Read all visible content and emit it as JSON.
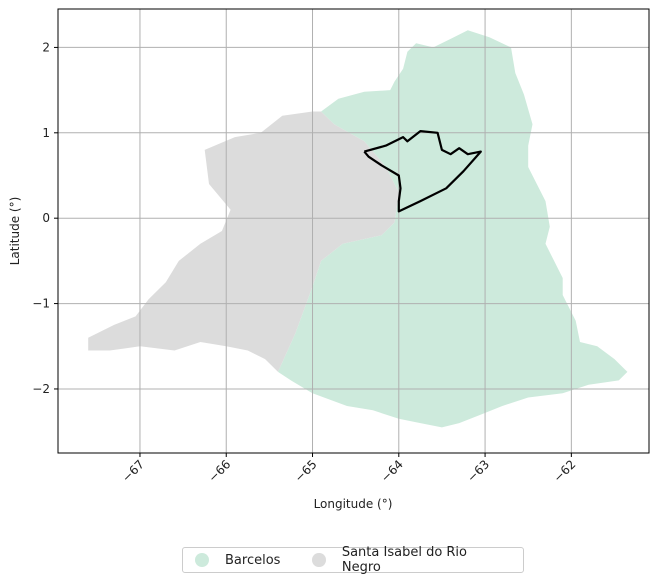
{
  "chart_data": {
    "type": "map",
    "xlabel": "Longitude (°)",
    "ylabel": "Latitude (°)",
    "xlim": [
      -67.95,
      -61.1
    ],
    "ylim": [
      -2.75,
      2.45
    ],
    "xticks": [
      -67,
      -66,
      -65,
      -64,
      -63,
      -62
    ],
    "yticks": [
      -2,
      -1,
      0,
      1,
      2
    ],
    "xtick_labels": [
      "−67",
      "−66",
      "−65",
      "−64",
      "−63",
      "−62"
    ],
    "ytick_labels": [
      "−2",
      "−1",
      "0",
      "1",
      "2"
    ],
    "xtick_rotation": 45,
    "grid": true,
    "legend_position": "bottom-center",
    "regions": [
      {
        "name": "Barcelos",
        "color": "#cdeadc",
        "polygon": [
          [
            -64.9,
            1.25
          ],
          [
            -64.7,
            1.4
          ],
          [
            -64.4,
            1.48
          ],
          [
            -64.1,
            1.5
          ],
          [
            -64.05,
            1.6
          ],
          [
            -63.95,
            1.75
          ],
          [
            -63.9,
            1.95
          ],
          [
            -63.8,
            2.05
          ],
          [
            -63.6,
            2.0
          ],
          [
            -63.4,
            2.1
          ],
          [
            -63.2,
            2.2
          ],
          [
            -62.95,
            2.12
          ],
          [
            -62.7,
            2.0
          ],
          [
            -62.65,
            1.7
          ],
          [
            -62.55,
            1.45
          ],
          [
            -62.45,
            1.1
          ],
          [
            -62.5,
            0.85
          ],
          [
            -62.5,
            0.6
          ],
          [
            -62.4,
            0.4
          ],
          [
            -62.3,
            0.2
          ],
          [
            -62.25,
            -0.1
          ],
          [
            -62.3,
            -0.3
          ],
          [
            -62.2,
            -0.5
          ],
          [
            -62.1,
            -0.7
          ],
          [
            -62.1,
            -0.9
          ],
          [
            -61.95,
            -1.2
          ],
          [
            -61.9,
            -1.45
          ],
          [
            -61.7,
            -1.5
          ],
          [
            -61.5,
            -1.65
          ],
          [
            -61.35,
            -1.8
          ],
          [
            -61.45,
            -1.9
          ],
          [
            -61.8,
            -1.95
          ],
          [
            -62.1,
            -2.05
          ],
          [
            -62.5,
            -2.1
          ],
          [
            -62.8,
            -2.2
          ],
          [
            -63.05,
            -2.3
          ],
          [
            -63.3,
            -2.4
          ],
          [
            -63.5,
            -2.45
          ],
          [
            -63.75,
            -2.4
          ],
          [
            -64.0,
            -2.35
          ],
          [
            -64.3,
            -2.25
          ],
          [
            -64.6,
            -2.2
          ],
          [
            -65.0,
            -2.05
          ],
          [
            -65.25,
            -1.9
          ],
          [
            -65.4,
            -1.8
          ],
          [
            -65.2,
            -1.35
          ],
          [
            -65.0,
            -0.8
          ],
          [
            -64.9,
            -0.5
          ],
          [
            -64.65,
            -0.3
          ],
          [
            -64.2,
            -0.2
          ],
          [
            -64.05,
            -0.05
          ],
          [
            -64.0,
            0.3
          ],
          [
            -64.15,
            0.6
          ],
          [
            -64.4,
            0.9
          ],
          [
            -64.75,
            1.1
          ]
        ]
      },
      {
        "name": "Santa Isabel do Rio Negro",
        "color": "#dcdcdc",
        "polygon": [
          [
            -65.0,
            1.25
          ],
          [
            -64.9,
            1.25
          ],
          [
            -64.75,
            1.1
          ],
          [
            -64.4,
            0.9
          ],
          [
            -64.15,
            0.6
          ],
          [
            -64.0,
            0.3
          ],
          [
            -64.05,
            -0.05
          ],
          [
            -64.2,
            -0.2
          ],
          [
            -64.65,
            -0.3
          ],
          [
            -64.9,
            -0.5
          ],
          [
            -65.0,
            -0.8
          ],
          [
            -65.2,
            -1.35
          ],
          [
            -65.4,
            -1.8
          ],
          [
            -65.55,
            -1.65
          ],
          [
            -65.75,
            -1.55
          ],
          [
            -66.0,
            -1.5
          ],
          [
            -66.3,
            -1.45
          ],
          [
            -66.6,
            -1.55
          ],
          [
            -67.0,
            -1.5
          ],
          [
            -67.35,
            -1.55
          ],
          [
            -67.6,
            -1.55
          ],
          [
            -67.6,
            -1.4
          ],
          [
            -67.3,
            -1.25
          ],
          [
            -67.05,
            -1.15
          ],
          [
            -66.9,
            -0.95
          ],
          [
            -66.7,
            -0.75
          ],
          [
            -66.55,
            -0.5
          ],
          [
            -66.3,
            -0.3
          ],
          [
            -66.05,
            -0.15
          ],
          [
            -65.95,
            0.1
          ],
          [
            -66.2,
            0.4
          ],
          [
            -66.25,
            0.8
          ],
          [
            -65.9,
            0.95
          ],
          [
            -65.6,
            1.0
          ],
          [
            -65.35,
            1.2
          ]
        ]
      }
    ],
    "outline": {
      "color": "#000000",
      "polyline": [
        [
          -64.4,
          0.78
        ],
        [
          -64.15,
          0.85
        ],
        [
          -63.95,
          0.95
        ],
        [
          -63.9,
          0.9
        ],
        [
          -63.75,
          1.02
        ],
        [
          -63.55,
          1.0
        ],
        [
          -63.5,
          0.8
        ],
        [
          -63.4,
          0.75
        ],
        [
          -63.3,
          0.82
        ],
        [
          -63.2,
          0.75
        ],
        [
          -63.05,
          0.78
        ],
        [
          -63.25,
          0.55
        ],
        [
          -63.45,
          0.35
        ],
        [
          -63.75,
          0.2
        ],
        [
          -64.0,
          0.08
        ],
        [
          -64.0,
          0.2
        ],
        [
          -63.98,
          0.35
        ],
        [
          -64.0,
          0.5
        ],
        [
          -64.2,
          0.62
        ],
        [
          -64.35,
          0.72
        ],
        [
          -64.4,
          0.78
        ]
      ]
    }
  },
  "legend": {
    "items": [
      {
        "label": "Barcelos",
        "color": "#cdeadc"
      },
      {
        "label": "Santa Isabel do Rio Negro",
        "color": "#dcdcdc"
      }
    ]
  }
}
